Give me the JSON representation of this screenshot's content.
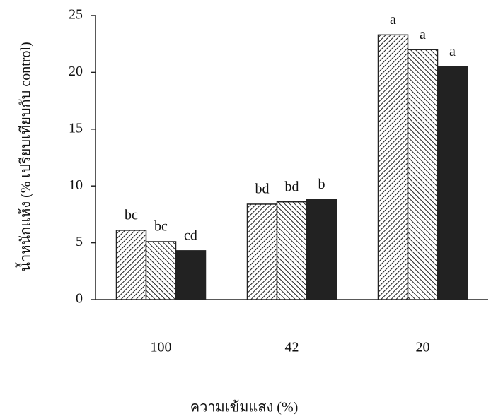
{
  "chart_data": {
    "type": "bar",
    "x_label": "ความเข้มแสง (%)",
    "y_label": "น้ำหนักแห้ง (% เปรียบเทียบกับ control)",
    "categories": [
      "100",
      "42",
      "20"
    ],
    "series": [
      {
        "color": "#222222",
        "hatch": "/",
        "values": [
          6.1,
          8.4,
          23.3
        ],
        "letters": [
          "bc",
          "bd",
          "a"
        ]
      },
      {
        "color": "#222222",
        "hatch": "\\",
        "values": [
          5.1,
          8.6,
          22.0
        ],
        "letters": [
          "bc",
          "bd",
          "a"
        ]
      },
      {
        "color": "#222222",
        "hatch": "solid",
        "values": [
          4.3,
          8.8,
          20.5
        ],
        "letters": [
          "cd",
          "b",
          "a"
        ]
      }
    ],
    "ylim": [
      0,
      25
    ],
    "yticks": [
      0,
      5,
      10,
      15,
      20,
      25
    ],
    "grid": false
  }
}
